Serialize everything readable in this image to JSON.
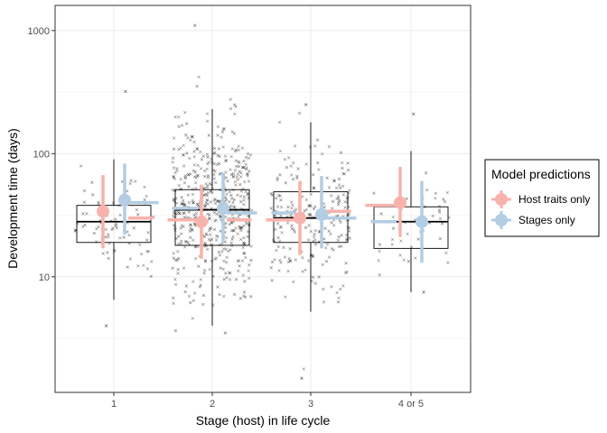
{
  "chart_data": {
    "type": "box",
    "title": "",
    "xlabel": "Stage (host) in life cycle",
    "ylabel": "Development time (days)",
    "y_scale": "log10",
    "ylim": [
      1.15,
      1600
    ],
    "y_ticks": [
      {
        "value": 10,
        "label": "10"
      },
      {
        "value": 100,
        "label": "100"
      },
      {
        "value": 1000,
        "label": "1000"
      }
    ],
    "categories": [
      "1",
      "2",
      "3",
      "4 or 5"
    ],
    "grid": true,
    "boxes": [
      {
        "category": "1",
        "whisker_low": 6.5,
        "q1": 19,
        "median": 28,
        "q3": 38,
        "whisker_high": 90
      },
      {
        "category": "2",
        "whisker_low": 4,
        "q1": 18,
        "median": 35,
        "q3": 51,
        "whisker_high": 230
      },
      {
        "category": "3",
        "whisker_low": 5.2,
        "q1": 19,
        "median": 30,
        "q3": 49,
        "whisker_high": 180
      },
      {
        "category": "4 or 5",
        "whisker_low": 7.5,
        "q1": 17,
        "median": 28,
        "q3": 37,
        "whisker_high": 105
      }
    ],
    "point_counts": [
      80,
      520,
      230,
      45
    ],
    "point_ranges": [
      [
        4,
        320
      ],
      [
        3.5,
        1100
      ],
      [
        1.5,
        250
      ],
      [
        7.5,
        210
      ]
    ],
    "legend": {
      "title": "Model predictions",
      "position": "right",
      "entries": [
        {
          "label": "Host traits only",
          "color": "#F8B2AC"
        },
        {
          "label": "Stages only",
          "color": "#B3CDE3"
        }
      ]
    },
    "series": [
      {
        "name": "Host traits only",
        "color": "#F8B2AC",
        "points": [
          {
            "category": "1",
            "estimate": 34,
            "lower": 17,
            "upper": 67
          },
          {
            "category": "2",
            "estimate": 28,
            "lower": 14,
            "upper": 56
          },
          {
            "category": "3",
            "estimate": 30,
            "lower": 15,
            "upper": 60
          },
          {
            "category": "4 or 5",
            "estimate": 40,
            "lower": 21,
            "upper": 78
          }
        ]
      },
      {
        "name": "Stages only",
        "color": "#B3CDE3",
        "points": [
          {
            "category": "1",
            "estimate": 42,
            "lower": 22,
            "upper": 83
          },
          {
            "category": "2",
            "estimate": 36,
            "lower": 19,
            "upper": 70
          },
          {
            "category": "3",
            "estimate": 32,
            "lower": 17,
            "upper": 66
          },
          {
            "category": "4 or 5",
            "estimate": 28,
            "lower": 13,
            "upper": 60
          }
        ]
      }
    ],
    "transition_dashes": [
      {
        "series": "Host traits only",
        "from": "1",
        "to": "2",
        "values": [
          30,
          29
        ]
      },
      {
        "series": "Host traits only",
        "from": "2",
        "to": "3",
        "values": [
          29,
          29
        ]
      },
      {
        "series": "Host traits only",
        "from": "3",
        "to": "4 or 5",
        "values": [
          34,
          38
        ]
      },
      {
        "series": "Stages only",
        "from": "1",
        "to": "2",
        "values": [
          40,
          36
        ]
      },
      {
        "series": "Stages only",
        "from": "2",
        "to": "3",
        "values": [
          33,
          33
        ]
      },
      {
        "series": "Stages only",
        "from": "3",
        "to": "4 or 5",
        "values": [
          30,
          28
        ]
      }
    ]
  }
}
